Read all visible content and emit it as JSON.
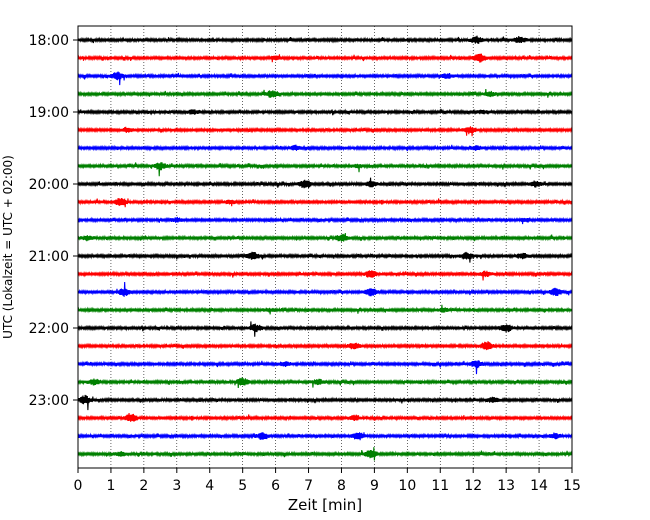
{
  "chart_data": {
    "type": "line",
    "title": "",
    "xlabel": "Zeit  [min]",
    "ylabel": "UTC (Lokalzeit = UTC + 02:00)",
    "xlim": [
      0,
      15
    ],
    "x_ticks": [
      0,
      1,
      2,
      3,
      4,
      5,
      6,
      7,
      8,
      9,
      10,
      11,
      12,
      13,
      14,
      15
    ],
    "x_tick_labels": [
      "0",
      "1",
      "2",
      "3",
      "4",
      "5",
      "6",
      "7",
      "8",
      "9",
      "10",
      "11",
      "12",
      "13",
      "14",
      "15"
    ],
    "y_tick_labels": [
      "18:00",
      "19:00",
      "20:00",
      "21:00",
      "22:00",
      "23:00"
    ],
    "y_tick_trace_index": [
      0,
      4,
      8,
      12,
      16,
      20
    ],
    "trace_colors": [
      "#000000",
      "#ff0000",
      "#0000ff",
      "#008000"
    ],
    "traces_start": "18:00",
    "trace_interval_minutes": 15,
    "trace_count": 24,
    "grid": "x-dotted",
    "events": [
      {
        "trace": 0,
        "x": 12.1,
        "a": 0.8
      },
      {
        "trace": 0,
        "x": 13.4,
        "a": 0.7
      },
      {
        "trace": 1,
        "x": 12.2,
        "a": 1.0
      },
      {
        "trace": 1,
        "x": 6.0,
        "a": 0.4
      },
      {
        "trace": 2,
        "x": 1.2,
        "a": 0.9
      },
      {
        "trace": 2,
        "x": 11.2,
        "a": 0.5
      },
      {
        "trace": 3,
        "x": 5.9,
        "a": 0.9
      },
      {
        "trace": 3,
        "x": 12.5,
        "a": 0.5
      },
      {
        "trace": 4,
        "x": 3.5,
        "a": 0.5
      },
      {
        "trace": 4,
        "x": 12.3,
        "a": 0.4
      },
      {
        "trace": 5,
        "x": 11.9,
        "a": 0.8
      },
      {
        "trace": 5,
        "x": 1.5,
        "a": 0.5
      },
      {
        "trace": 6,
        "x": 6.6,
        "a": 0.5
      },
      {
        "trace": 6,
        "x": 12.1,
        "a": 0.5
      },
      {
        "trace": 7,
        "x": 2.5,
        "a": 0.8
      },
      {
        "trace": 7,
        "x": 8.5,
        "a": 0.4
      },
      {
        "trace": 8,
        "x": 6.9,
        "a": 1.0
      },
      {
        "trace": 8,
        "x": 8.9,
        "a": 0.6
      },
      {
        "trace": 8,
        "x": 13.9,
        "a": 0.7
      },
      {
        "trace": 9,
        "x": 1.3,
        "a": 0.9
      },
      {
        "trace": 9,
        "x": 4.6,
        "a": 0.4
      },
      {
        "trace": 10,
        "x": 3.0,
        "a": 0.5
      },
      {
        "trace": 10,
        "x": 13.6,
        "a": 0.4
      },
      {
        "trace": 11,
        "x": 8.0,
        "a": 0.8
      },
      {
        "trace": 11,
        "x": 0.3,
        "a": 0.5
      },
      {
        "trace": 12,
        "x": 5.3,
        "a": 0.9
      },
      {
        "trace": 12,
        "x": 11.8,
        "a": 0.8
      },
      {
        "trace": 12,
        "x": 13.5,
        "a": 0.6
      },
      {
        "trace": 13,
        "x": 8.9,
        "a": 0.9
      },
      {
        "trace": 13,
        "x": 12.4,
        "a": 0.6
      },
      {
        "trace": 14,
        "x": 1.4,
        "a": 0.9
      },
      {
        "trace": 14,
        "x": 8.9,
        "a": 0.9
      },
      {
        "trace": 14,
        "x": 14.5,
        "a": 0.9
      },
      {
        "trace": 15,
        "x": 5.8,
        "a": 0.4
      },
      {
        "trace": 15,
        "x": 11.1,
        "a": 0.4
      },
      {
        "trace": 16,
        "x": 5.4,
        "a": 0.9
      },
      {
        "trace": 16,
        "x": 13.0,
        "a": 0.9
      },
      {
        "trace": 17,
        "x": 8.4,
        "a": 0.8
      },
      {
        "trace": 17,
        "x": 12.4,
        "a": 1.0
      },
      {
        "trace": 18,
        "x": 12.1,
        "a": 0.8
      },
      {
        "trace": 18,
        "x": 6.3,
        "a": 0.5
      },
      {
        "trace": 19,
        "x": 5.0,
        "a": 0.9
      },
      {
        "trace": 19,
        "x": 0.5,
        "a": 0.7
      },
      {
        "trace": 19,
        "x": 7.3,
        "a": 0.6
      },
      {
        "trace": 20,
        "x": 0.2,
        "a": 1.0
      },
      {
        "trace": 20,
        "x": 12.6,
        "a": 0.6
      },
      {
        "trace": 21,
        "x": 1.6,
        "a": 1.0
      },
      {
        "trace": 21,
        "x": 8.4,
        "a": 0.6
      },
      {
        "trace": 22,
        "x": 5.6,
        "a": 0.8
      },
      {
        "trace": 22,
        "x": 8.5,
        "a": 0.9
      },
      {
        "trace": 22,
        "x": 14.5,
        "a": 0.6
      },
      {
        "trace": 23,
        "x": 8.9,
        "a": 0.9
      },
      {
        "trace": 23,
        "x": 1.3,
        "a": 0.5
      }
    ]
  }
}
